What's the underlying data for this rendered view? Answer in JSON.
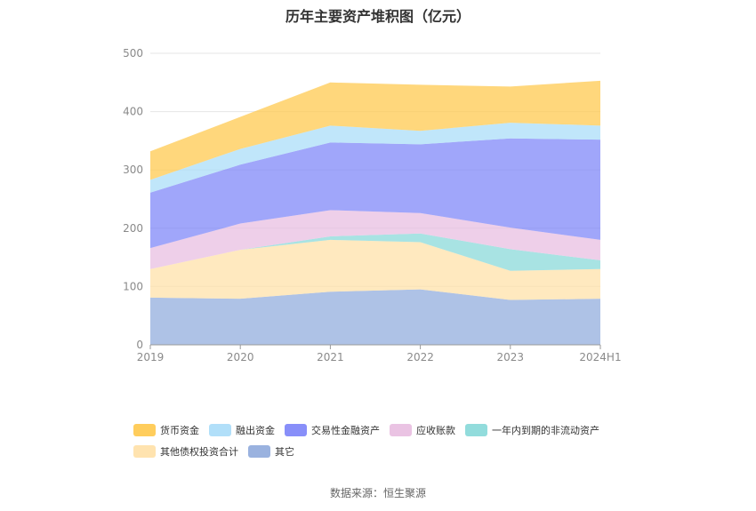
{
  "chart_data": {
    "type": "area",
    "stacked": true,
    "title": "历年主要资产堆积图（亿元）",
    "categories": [
      "2019",
      "2020",
      "2021",
      "2022",
      "2023",
      "2024H1"
    ],
    "ylim": [
      0,
      500
    ],
    "yticks": [
      "0",
      "100",
      "200",
      "300",
      "400",
      "500"
    ],
    "grid": true,
    "legend_position": "bottom",
    "series": [
      {
        "name": "其它",
        "color": "#8faadc",
        "values": [
          81,
          79,
          91,
          95,
          77,
          79
        ]
      },
      {
        "name": "其他债权投资合计",
        "color": "#ffe0a6",
        "values": [
          49,
          84,
          89,
          81,
          50,
          51
        ]
      },
      {
        "name": "一年内到期的非流动资产",
        "color": "#86d8d8",
        "values": [
          0,
          0,
          6,
          15,
          37,
          15
        ]
      },
      {
        "name": "应收账款",
        "color": "#e8bce0",
        "values": [
          36,
          45,
          45,
          35,
          37,
          35
        ]
      },
      {
        "name": "交易性金融资产",
        "color": "#7b83f8",
        "values": [
          95,
          101,
          116,
          118,
          153,
          172
        ]
      },
      {
        "name": "融出资金",
        "color": "#a8dcf8",
        "values": [
          22,
          27,
          29,
          23,
          27,
          24
        ]
      },
      {
        "name": "货币资金",
        "color": "#ffc84a",
        "values": [
          49,
          55,
          74,
          79,
          62,
          77
        ]
      }
    ]
  },
  "legend_order": [
    "货币资金",
    "融出资金",
    "交易性金融资产",
    "应收账款",
    "一年内到期的非流动资产",
    "其他债权投资合计",
    "其它"
  ],
  "source": "数据来源：恒生聚源"
}
